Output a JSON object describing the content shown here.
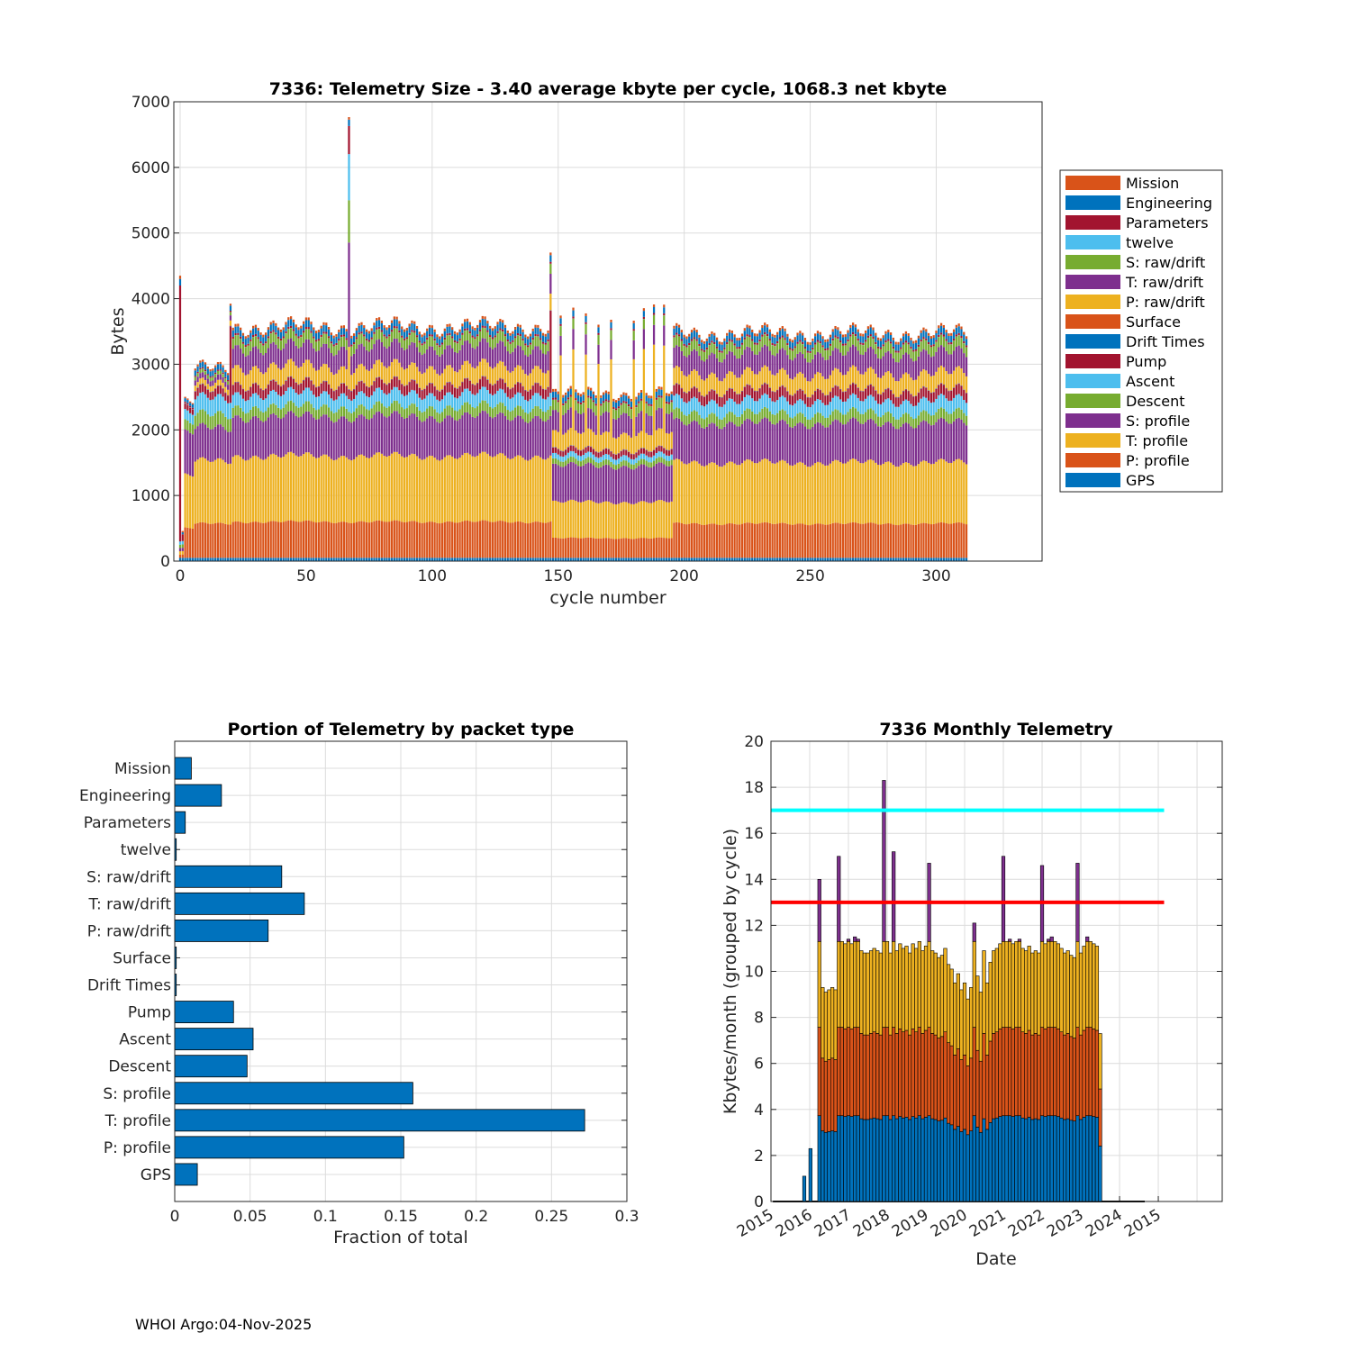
{
  "colors": {
    "blue": "#0072BD",
    "orange": "#D95319",
    "yellow": "#EDB120",
    "purple": "#7E2F8E",
    "green": "#77AC30",
    "lightblue": "#4DBEEE",
    "red": "#A2142F",
    "cyan": "#00FFFF",
    "redline": "#FF0000"
  },
  "footer": "WHOI Argo:04-Nov-2025",
  "chart_data": [
    {
      "type": "bar",
      "stacked": true,
      "title": "7336: Telemetry Size - 3.40 average kbyte per cycle, 1068.3 net kbyte",
      "xlabel": "cycle number",
      "ylabel": "Bytes",
      "xlim": [
        -2.5,
        342
      ],
      "ylim": [
        0,
        7000
      ],
      "xticks": [
        0,
        50,
        100,
        150,
        200,
        250,
        300
      ],
      "yticks": [
        0,
        1000,
        2000,
        3000,
        4000,
        5000,
        6000,
        7000
      ],
      "grid": true,
      "legend_placement": "outside-right",
      "legend": [
        "Mission",
        "Engineering",
        "Parameters",
        "twelve",
        "S: raw/drift",
        "T: raw/drift",
        "P: raw/drift",
        "Surface",
        "Drift Times",
        "Pump",
        "Ascent",
        "Descent",
        "S: profile",
        "T: profile",
        "P: profile",
        "GPS"
      ],
      "stack_order": [
        "GPS",
        "P: profile",
        "T: profile",
        "S: profile",
        "Descent",
        "Ascent",
        "Pump",
        "Drift Times",
        "Surface",
        "P: raw/drift",
        "T: raw/drift",
        "S: raw/drift",
        "twelve",
        "Parameters",
        "Engineering",
        "Mission"
      ],
      "stack_colors": [
        "blue",
        "orange",
        "yellow",
        "purple",
        "green",
        "lightblue",
        "red",
        "blue",
        "orange",
        "yellow",
        "purple",
        "green",
        "lightblue",
        "red",
        "blue",
        "orange"
      ],
      "cycles": [
        0,
        312
      ],
      "segments": [
        {
          "from": 0,
          "to": 0,
          "bytes": [
            50,
            50,
            50,
            50,
            50,
            50,
            3900,
            0,
            0,
            0,
            0,
            0,
            0,
            0,
            100,
            50
          ]
        },
        {
          "from": 1,
          "to": 1,
          "bytes": [
            50,
            50,
            50,
            50,
            50,
            50,
            100,
            0,
            0,
            0,
            0,
            0,
            0,
            0,
            30,
            20
          ]
        },
        {
          "from": 2,
          "to": 5,
          "bytes": [
            50,
            450,
            800,
            650,
            150,
            150,
            80,
            5,
            5,
            0,
            0,
            0,
            0,
            20,
            50,
            20
          ]
        },
        {
          "from": 6,
          "to": 20,
          "bytes": [
            50,
            520,
            950,
            500,
            200,
            250,
            120,
            5,
            5,
            80,
            80,
            50,
            2,
            20,
            80,
            30
          ]
        },
        {
          "from": 21,
          "to": 147,
          "bytes": [
            50,
            550,
            1000,
            600,
            150,
            200,
            150,
            5,
            5,
            250,
            300,
            150,
            2,
            30,
            100,
            40
          ]
        },
        {
          "from": 148,
          "to": 195,
          "bytes": [
            50,
            300,
            550,
            550,
            80,
            80,
            80,
            5,
            5,
            250,
            300,
            150,
            2,
            30,
            90,
            40
          ]
        },
        {
          "from": 196,
          "to": 312,
          "bytes": [
            50,
            520,
            930,
            600,
            150,
            200,
            150,
            5,
            5,
            250,
            300,
            150,
            2,
            30,
            100,
            40
          ]
        }
      ],
      "extra_bytes": [
        {
          "cycle": 20,
          "series": "Pump",
          "bytes": 1050
        },
        {
          "cycle": 67,
          "series": "T: raw/drift",
          "bytes": 1300
        },
        {
          "cycle": 67,
          "series": "P: raw/drift",
          "bytes": 400
        },
        {
          "cycle": 67,
          "series": "twelve",
          "bytes": 700
        },
        {
          "cycle": 67,
          "series": "S: raw/drift",
          "bytes": 500
        },
        {
          "cycle": 67,
          "series": "Parameters",
          "bytes": 400
        },
        {
          "cycle": 147,
          "series": "Pump",
          "bytes": 1100
        },
        {
          "cycle": 151,
          "series": "P: raw/drift",
          "bytes": 1200
        },
        {
          "cycle": 156,
          "series": "P: raw/drift",
          "bytes": 1200
        },
        {
          "cycle": 161,
          "series": "P: raw/drift",
          "bytes": 1150
        },
        {
          "cycle": 166,
          "series": "P: raw/drift",
          "bytes": 1100
        },
        {
          "cycle": 171,
          "series": "P: raw/drift",
          "bytes": 1150
        },
        {
          "cycle": 180,
          "series": "P: raw/drift",
          "bytes": 1200
        },
        {
          "cycle": 184,
          "series": "P: raw/drift",
          "bytes": 1250
        },
        {
          "cycle": 188,
          "series": "P: raw/drift",
          "bytes": 1350
        },
        {
          "cycle": 192,
          "series": "P: raw/drift",
          "bytes": 1300
        }
      ]
    },
    {
      "type": "bar",
      "orientation": "horizontal",
      "title": "Portion of Telemetry by packet type",
      "xlabel": "Fraction of total",
      "xlim": [
        0,
        0.3
      ],
      "xticks": [
        0,
        0.05,
        0.1,
        0.15,
        0.2,
        0.25,
        0.3
      ],
      "xticklabels": [
        "0",
        "0.05",
        "0.1",
        "0.15",
        "0.2",
        "0.25",
        "0.3"
      ],
      "grid": true,
      "categories": [
        "Mission",
        "Engineering",
        "Parameters",
        "twelve",
        "S: raw/drift",
        "T: raw/drift",
        "P: raw/drift",
        "Surface",
        "Drift Times",
        "Pump",
        "Ascent",
        "Descent",
        "S: profile",
        "T: profile",
        "P: profile",
        "GPS"
      ],
      "values": [
        0.011,
        0.031,
        0.007,
        0.001,
        0.071,
        0.086,
        0.062,
        0.001,
        0.001,
        0.039,
        0.052,
        0.048,
        0.158,
        0.272,
        0.152,
        0.015
      ]
    },
    {
      "type": "bar",
      "stacked": true,
      "title": "7336 Monthly Telemetry",
      "xlabel": "Date",
      "ylabel": "Kbytes/month (grouped by cycle)",
      "xlim": [
        2015,
        2026.65
      ],
      "ylim": [
        0,
        20
      ],
      "yticks": [
        0,
        2,
        4,
        6,
        8,
        10,
        12,
        14,
        16,
        18,
        20
      ],
      "xticklabels": [
        "2015",
        "2016",
        "2017",
        "2018",
        "2019",
        "2020",
        "2021",
        "2022",
        "2023",
        "2024",
        "2015"
      ],
      "grid": true,
      "hlines": [
        {
          "y": 17,
          "color": "cyan"
        },
        {
          "y": 13,
          "color": "redline"
        }
      ],
      "hline_x_range": [
        2015,
        2025.15
      ],
      "early_bars": [
        {
          "x": 2015.86,
          "value": 1.1
        },
        {
          "x": 2016.02,
          "value": 2.3
        }
      ],
      "month_start": 2016.25,
      "month_step": 0.08333,
      "component_base_max": 11.3,
      "component_fractions": {
        "blue": 0.33,
        "orange": 0.34,
        "yellow": 0.33
      },
      "totals": [
        14.0,
        9.3,
        9.1,
        9.2,
        9.3,
        9.2,
        15.0,
        11.3,
        11.2,
        11.4,
        11.2,
        11.5,
        11.4,
        10.9,
        10.8,
        10.8,
        10.9,
        11.0,
        10.9,
        10.8,
        18.3,
        11.3,
        10.8,
        15.2,
        10.9,
        11.2,
        11.0,
        11.1,
        10.8,
        11.2,
        11.0,
        11.3,
        10.9,
        11.1,
        14.7,
        10.9,
        10.8,
        10.6,
        10.7,
        11.0,
        10.3,
        10.1,
        9.5,
        9.9,
        9.2,
        9.5,
        8.8,
        9.3,
        12.1,
        9.8,
        9.1,
        10.9,
        9.5,
        10.4,
        10.9,
        11.0,
        11.2,
        15.0,
        11.3,
        11.4,
        11.2,
        11.3,
        11.4,
        11.0,
        10.9,
        11.1,
        10.8,
        10.9,
        10.8,
        14.6,
        11.2,
        11.4,
        11.5,
        11.3,
        11.2,
        11.0,
        10.8,
        10.9,
        10.7,
        10.6,
        14.7,
        10.8,
        11.1,
        11.5,
        11.3,
        11.2,
        11.1,
        7.3
      ]
    }
  ]
}
